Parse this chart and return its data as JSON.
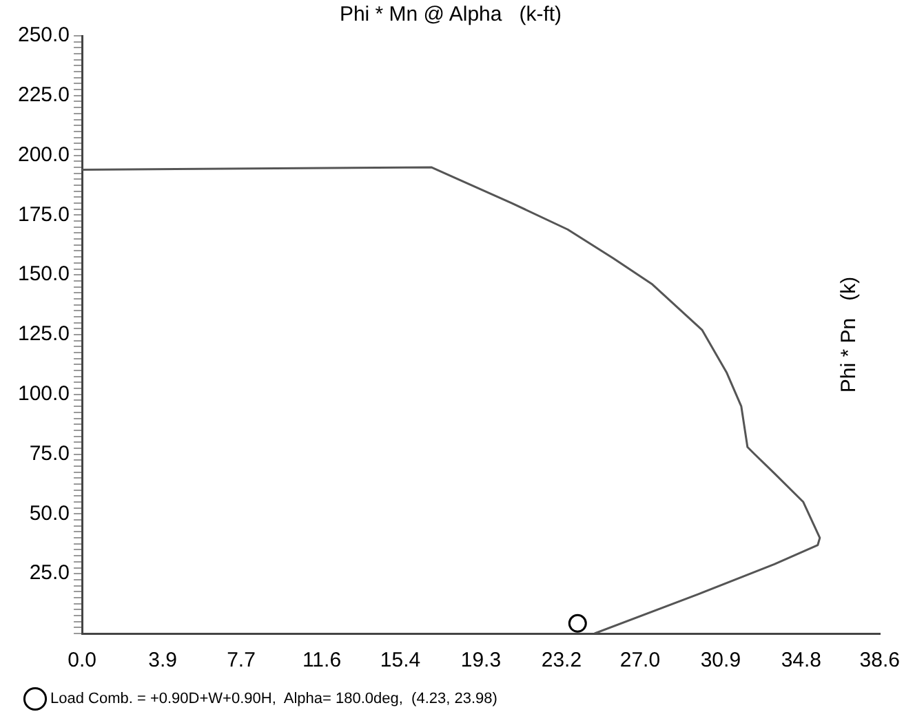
{
  "chart_data": {
    "type": "line",
    "title": "Phi * Mn @ Alpha   (k-ft)",
    "ylabel": "Phi * Pn   (k)",
    "xlim": [
      0,
      38.6
    ],
    "ylim": [
      0,
      250
    ],
    "xticks": [
      {
        "value": 0,
        "label": "0.0"
      },
      3.9,
      7.7,
      11.6,
      15.4,
      19.3,
      23.2,
      {
        "value": 27,
        "label": "27.0"
      },
      30.9,
      34.8,
      38.6
    ],
    "yticks": [
      {
        "value": 0,
        "label": null
      },
      {
        "value": 2.5,
        "label": null
      },
      {
        "value": 5,
        "label": null
      },
      {
        "value": 7.5,
        "label": null
      },
      {
        "value": 10,
        "label": null
      },
      {
        "value": 12.5,
        "label": null
      },
      {
        "value": 15,
        "label": null
      },
      {
        "value": 17.5,
        "label": null
      },
      {
        "value": 20,
        "label": null
      },
      {
        "value": 22.5,
        "label": null
      },
      {
        "value": 25,
        "label": "25.0"
      },
      {
        "value": 27.5,
        "label": null
      },
      {
        "value": 30,
        "label": null
      },
      {
        "value": 32.5,
        "label": null
      },
      {
        "value": 35,
        "label": null
      },
      {
        "value": 37.5,
        "label": null
      },
      {
        "value": 40,
        "label": null
      },
      {
        "value": 42.5,
        "label": null
      },
      {
        "value": 45,
        "label": null
      },
      {
        "value": 47.5,
        "label": null
      },
      {
        "value": 50,
        "label": "50.0"
      },
      {
        "value": 52.5,
        "label": null
      },
      {
        "value": 55,
        "label": null
      },
      {
        "value": 57.5,
        "label": null
      },
      {
        "value": 60,
        "label": null
      },
      {
        "value": 62.5,
        "label": null
      },
      {
        "value": 65,
        "label": null
      },
      {
        "value": 67.5,
        "label": null
      },
      {
        "value": 70,
        "label": null
      },
      {
        "value": 72.5,
        "label": null
      },
      {
        "value": 75,
        "label": "75.0"
      },
      {
        "value": 77.5,
        "label": null
      },
      {
        "value": 80,
        "label": null
      },
      {
        "value": 82.5,
        "label": null
      },
      {
        "value": 85,
        "label": null
      },
      {
        "value": 87.5,
        "label": null
      },
      {
        "value": 90,
        "label": null
      },
      {
        "value": 92.5,
        "label": null
      },
      {
        "value": 95,
        "label": null
      },
      {
        "value": 97.5,
        "label": null
      },
      {
        "value": 100,
        "label": "100.0"
      },
      {
        "value": 102.5,
        "label": null
      },
      {
        "value": 105,
        "label": null
      },
      {
        "value": 107.5,
        "label": null
      },
      {
        "value": 110,
        "label": null
      },
      {
        "value": 112.5,
        "label": null
      },
      {
        "value": 115,
        "label": null
      },
      {
        "value": 117.5,
        "label": null
      },
      {
        "value": 120,
        "label": null
      },
      {
        "value": 122.5,
        "label": null
      },
      {
        "value": 125,
        "label": "125.0"
      },
      {
        "value": 127.5,
        "label": null
      },
      {
        "value": 130,
        "label": null
      },
      {
        "value": 132.5,
        "label": null
      },
      {
        "value": 135,
        "label": null
      },
      {
        "value": 137.5,
        "label": null
      },
      {
        "value": 140,
        "label": null
      },
      {
        "value": 142.5,
        "label": null
      },
      {
        "value": 145,
        "label": null
      },
      {
        "value": 147.5,
        "label": null
      },
      {
        "value": 150,
        "label": "150.0"
      },
      {
        "value": 152.5,
        "label": null
      },
      {
        "value": 155,
        "label": null
      },
      {
        "value": 157.5,
        "label": null
      },
      {
        "value": 160,
        "label": null
      },
      {
        "value": 162.5,
        "label": null
      },
      {
        "value": 165,
        "label": null
      },
      {
        "value": 167.5,
        "label": null
      },
      {
        "value": 170,
        "label": null
      },
      {
        "value": 172.5,
        "label": null
      },
      {
        "value": 175,
        "label": "175.0"
      },
      {
        "value": 177.5,
        "label": null
      },
      {
        "value": 180,
        "label": null
      },
      {
        "value": 182.5,
        "label": null
      },
      {
        "value": 185,
        "label": null
      },
      {
        "value": 187.5,
        "label": null
      },
      {
        "value": 190,
        "label": null
      },
      {
        "value": 192.5,
        "label": null
      },
      {
        "value": 195,
        "label": null
      },
      {
        "value": 197.5,
        "label": null
      },
      {
        "value": 200,
        "label": "200.0"
      },
      {
        "value": 202.5,
        "label": null
      },
      {
        "value": 205,
        "label": null
      },
      {
        "value": 207.5,
        "label": null
      },
      {
        "value": 210,
        "label": null
      },
      {
        "value": 212.5,
        "label": null
      },
      {
        "value": 215,
        "label": null
      },
      {
        "value": 217.5,
        "label": null
      },
      {
        "value": 220,
        "label": null
      },
      {
        "value": 222.5,
        "label": null
      },
      {
        "value": 225,
        "label": "225.0"
      },
      {
        "value": 227.5,
        "label": null
      },
      {
        "value": 230,
        "label": null
      },
      {
        "value": 232.5,
        "label": null
      },
      {
        "value": 235,
        "label": null
      },
      {
        "value": 237.5,
        "label": null
      },
      {
        "value": 240,
        "label": null
      },
      {
        "value": 242.5,
        "label": null
      },
      {
        "value": 245,
        "label": null
      },
      {
        "value": 247.5,
        "label": null
      },
      {
        "value": 250,
        "label": "250.0"
      }
    ],
    "grid": false,
    "legend": "bottom left",
    "marker": "none",
    "line_style": "solid",
    "series": [
      {
        "color": "#555555",
        "x": [
          0,
          16.9,
          20.8,
          23.5,
          25.7,
          27.6,
          30.0,
          31.2,
          31.9,
          32.2,
          32.5,
          33.5,
          34.9,
          35.7,
          35.6,
          33.5,
          29.8,
          24.8
        ],
        "values": [
          194,
          195,
          180,
          169,
          157,
          146,
          127,
          109,
          95,
          78,
          75.4,
          67,
          55,
          40,
          37,
          29,
          16.4,
          0
        ]
      },
      {
        "type": "scatter",
        "marker": "circle",
        "name": "Load Comb. = +0.90D+W+0.90H,  Alpha= 180.0deg,  (4.23, 23.98)",
        "color": "#000000",
        "x": [
          23.98
        ],
        "values": [
          4.23
        ]
      }
    ]
  }
}
